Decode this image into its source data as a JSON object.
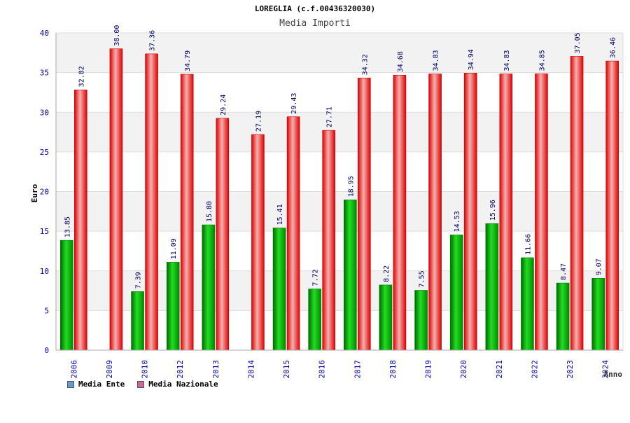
{
  "chart_data": {
    "type": "bar",
    "title": "LOREGLIA (c.f.00436320030)",
    "subtitle": "Media Importi",
    "ylabel": "Euro",
    "xlabel": "Anno",
    "ylim": [
      0,
      40
    ],
    "y_ticks": [
      0,
      5,
      10,
      15,
      20,
      25,
      30,
      35,
      40
    ],
    "grid": "horizontal alternating bands",
    "categories": [
      "2006",
      "2009",
      "2010",
      "2012",
      "2013",
      "2014",
      "2015",
      "2016",
      "2017",
      "2018",
      "2019",
      "2020",
      "2021",
      "2022",
      "2023",
      "2024"
    ],
    "series": [
      {
        "name": "Media Ente",
        "values": [
          13.85,
          null,
          7.39,
          11.09,
          15.8,
          null,
          15.41,
          7.72,
          18.95,
          8.22,
          7.55,
          14.53,
          15.96,
          11.66,
          8.47,
          9.07
        ],
        "labels": [
          "13.85",
          null,
          "7.39",
          "11.09",
          "15.80",
          null,
          "15.41",
          "7.72",
          "18.95",
          "8.22",
          "7.55",
          "14.53",
          "15.96",
          "11.66",
          "8.47",
          "9.07"
        ],
        "color": "#00aa00"
      },
      {
        "name": "Media Nazionale",
        "values": [
          32.82,
          38.0,
          37.36,
          34.79,
          29.24,
          27.19,
          29.43,
          27.71,
          34.32,
          34.68,
          34.83,
          34.94,
          34.83,
          34.85,
          37.05,
          36.46
        ],
        "labels": [
          "32.82",
          "38.00",
          "37.36",
          "34.79",
          "29.24",
          "27.19",
          "29.43",
          "27.71",
          "34.32",
          "34.68",
          "34.83",
          "34.94",
          "34.83",
          "34.85",
          "37.05",
          "36.46"
        ],
        "color": "#ee0000"
      }
    ],
    "legend": [
      {
        "label": "Media Ente",
        "color": "#6699cc"
      },
      {
        "label": "Media Nazionale",
        "color": "#cc6699"
      }
    ],
    "legend_position": "bottom-left"
  }
}
